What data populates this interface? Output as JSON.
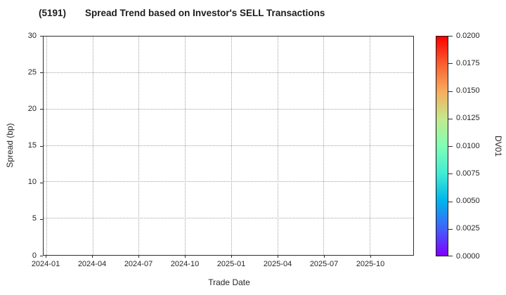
{
  "title": {
    "code": "(5191)",
    "text": "Spread Trend based on Investor's SELL Transactions"
  },
  "chart_data": {
    "type": "scatter",
    "title": "(5191)  Spread Trend based on Investor's SELL Transactions",
    "xlabel": "Trade Date",
    "ylabel": "Spread (bp)",
    "ylim": [
      0,
      30
    ],
    "y_ticks": [
      0,
      5,
      10,
      15,
      20,
      25,
      30
    ],
    "x_ticks": [
      {
        "label": "2024-01",
        "month": 0
      },
      {
        "label": "2024-04",
        "month": 3
      },
      {
        "label": "2024-07",
        "month": 6
      },
      {
        "label": "2024-10",
        "month": 9
      },
      {
        "label": "2025-01",
        "month": 12
      },
      {
        "label": "2025-04",
        "month": 15
      },
      {
        "label": "2025-07",
        "month": 18
      },
      {
        "label": "2025-10",
        "month": 21
      }
    ],
    "xlim_months": [
      -0.18,
      23.82
    ],
    "grid": "dotted",
    "legend": "none",
    "series": [],
    "colorbar": {
      "label": "DV01",
      "clim": [
        0.0,
        0.02
      ],
      "ticks": [
        "0.0000",
        "0.0025",
        "0.0050",
        "0.0075",
        "0.0100",
        "0.0125",
        "0.0150",
        "0.0175",
        "0.0200"
      ],
      "colormap": "rainbow",
      "gradient_stops": [
        {
          "pos": 0.0,
          "color": "#8000ff"
        },
        {
          "pos": 0.125,
          "color": "#4062fa"
        },
        {
          "pos": 0.25,
          "color": "#00b4ec"
        },
        {
          "pos": 0.375,
          "color": "#40ecd4"
        },
        {
          "pos": 0.5,
          "color": "#80ffb4"
        },
        {
          "pos": 0.625,
          "color": "#c4e98c"
        },
        {
          "pos": 0.75,
          "color": "#f7ac5e"
        },
        {
          "pos": 0.875,
          "color": "#f85f30"
        },
        {
          "pos": 1.0,
          "color": "#ff0000"
        }
      ]
    }
  },
  "colors": {
    "background": "#ffffff",
    "text": "#262626",
    "spine": "#2e2e2e",
    "grid": "#a3a3a3"
  }
}
